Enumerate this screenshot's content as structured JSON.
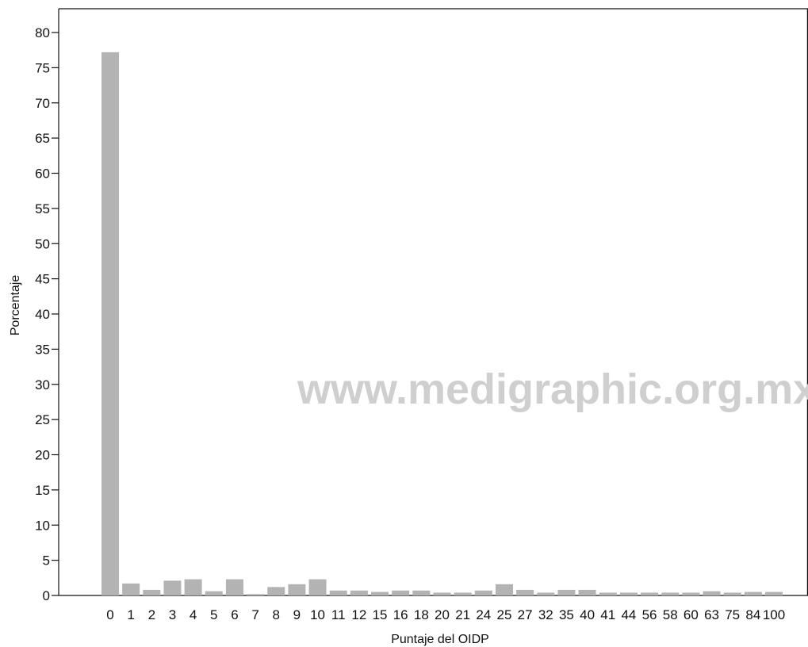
{
  "chart_data": {
    "type": "bar",
    "title": "",
    "xlabel": "Puntaje del OIDP",
    "ylabel": "Porcentaje",
    "ylim": [
      0,
      80
    ],
    "yticks": [
      0,
      5,
      10,
      15,
      20,
      25,
      30,
      35,
      40,
      45,
      50,
      55,
      60,
      65,
      70,
      75,
      80
    ],
    "categories": [
      "0",
      "1",
      "2",
      "3",
      "4",
      "5",
      "6",
      "7",
      "8",
      "9",
      "10",
      "11",
      "12",
      "15",
      "16",
      "18",
      "20",
      "21",
      "24",
      "25",
      "27",
      "32",
      "35",
      "40",
      "41",
      "44",
      "56",
      "58",
      "60",
      "63",
      "75",
      "84",
      "100"
    ],
    "values": [
      77.2,
      1.7,
      0.8,
      2.1,
      2.3,
      0.6,
      2.3,
      0.2,
      1.2,
      1.6,
      2.3,
      0.7,
      0.7,
      0.5,
      0.7,
      0.7,
      0.4,
      0.4,
      0.7,
      1.6,
      0.8,
      0.4,
      0.8,
      0.8,
      0.4,
      0.4,
      0.4,
      0.4,
      0.4,
      0.6,
      0.4,
      0.5,
      0.5
    ],
    "bar_color": "#b3b3b3",
    "grid": false,
    "legend": "none"
  },
  "watermark": "www.medigraphic.org.mx"
}
